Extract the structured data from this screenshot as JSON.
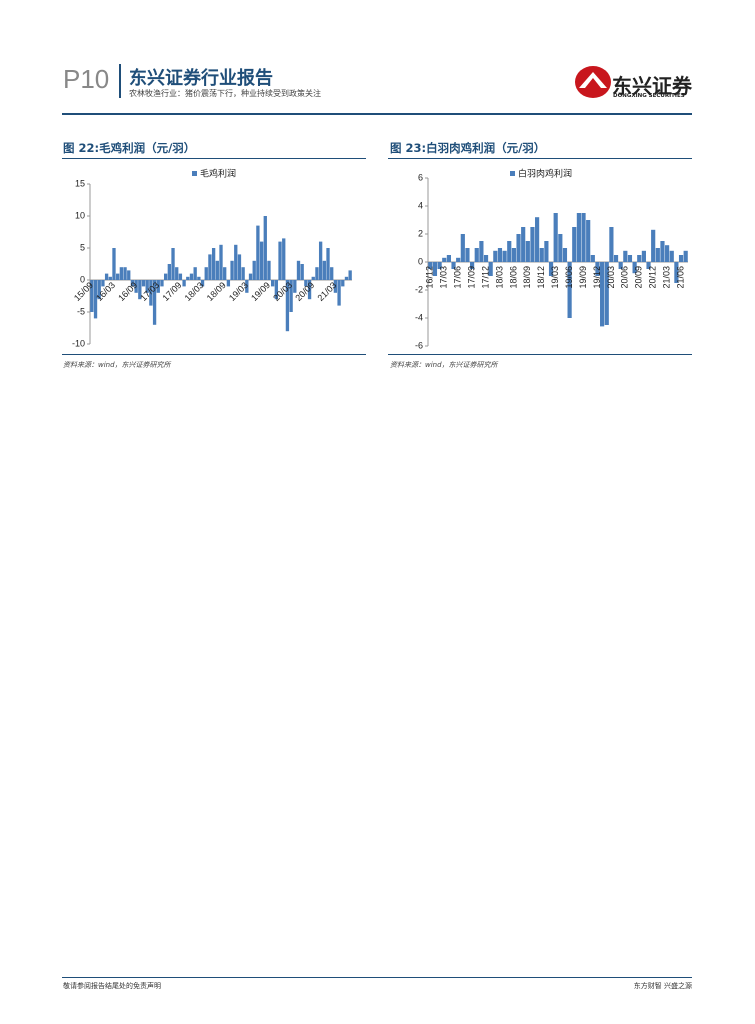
{
  "header": {
    "page": "P10",
    "title": "东兴证券行业报告",
    "subtitle": "农林牧渔行业：猪价震荡下行，种业持续受到政策关注",
    "logo": "东兴证券",
    "logo_en": "DONGXING SECURITIES"
  },
  "chart_data": [
    {
      "type": "bar",
      "title": "图 22:毛鸡利润（元/羽）",
      "source": "资料来源：wind，东兴证券研究所",
      "categories": [
        "15/09",
        null,
        null,
        null,
        null,
        null,
        "16/03",
        null,
        null,
        null,
        null,
        null,
        "16/09",
        null,
        null,
        null,
        null,
        null,
        "17/03",
        null,
        null,
        null,
        null,
        null,
        "17/09",
        null,
        null,
        null,
        null,
        null,
        "18/03",
        null,
        null,
        null,
        null,
        null,
        "18/09",
        null,
        null,
        null,
        null,
        null,
        "19/03",
        null,
        null,
        null,
        null,
        null,
        "19/09",
        null,
        null,
        null,
        null,
        null,
        "20/03",
        null,
        null,
        null,
        null,
        null,
        "20/09",
        null,
        null,
        null,
        null,
        null,
        "21/03",
        null,
        null,
        null,
        null
      ],
      "series": [
        {
          "name": "毛鸡利润",
          "color": "#4a7ebb",
          "values": [
            -5,
            -6,
            -3,
            -1,
            1,
            0.5,
            5,
            1,
            2,
            2,
            1.5,
            -1,
            -2,
            -3,
            -1,
            -2,
            -4,
            -7,
            -2,
            -1,
            1,
            2.5,
            5,
            2,
            1,
            -1,
            0.5,
            1,
            2,
            0.5,
            -1,
            2,
            4,
            5,
            3,
            5.5,
            2,
            -1,
            3,
            5.5,
            4,
            2,
            -2,
            1,
            3,
            8.5,
            6,
            10,
            3,
            -1,
            -3,
            6,
            6.5,
            -8,
            -5,
            -2,
            3,
            2.5,
            -1,
            -3,
            0.5,
            2,
            6,
            3,
            5,
            2,
            -2,
            -4,
            -1,
            0.5,
            1.5
          ]
        }
      ],
      "ylim": [
        -10,
        15
      ],
      "yticks": [
        -10,
        -5,
        0,
        5,
        10,
        15
      ],
      "label_rotation": -45
    },
    {
      "type": "bar",
      "title": "图 23:白羽肉鸡利润（元/羽）",
      "source": "资料来源：wind，东兴证券研究所",
      "categories": [
        "16/12",
        null,
        null,
        "17/03",
        null,
        null,
        "17/06",
        null,
        null,
        "17/09",
        null,
        null,
        "17/12",
        null,
        null,
        "18/03",
        null,
        null,
        "18/06",
        null,
        null,
        "18/09",
        null,
        null,
        "18/12",
        null,
        null,
        "19/03",
        null,
        null,
        "19/06",
        null,
        null,
        "19/09",
        null,
        null,
        "19/12",
        null,
        null,
        "20/03",
        null,
        null,
        "20/06",
        null,
        null,
        "20/09",
        null,
        null,
        "20/12",
        null,
        null,
        "21/03",
        null,
        null,
        "21/06",
        null
      ],
      "series": [
        {
          "name": "白羽肉鸡利润",
          "color": "#4a7ebb",
          "values": [
            -0.5,
            -1,
            -0.5,
            0.3,
            0.5,
            -0.5,
            0.3,
            2,
            1,
            -0.5,
            1,
            1.5,
            0.5,
            -1,
            0.8,
            1,
            0.8,
            1.5,
            1,
            2,
            2.5,
            1.5,
            2.5,
            3.2,
            1,
            1.5,
            -1,
            3.5,
            2,
            1,
            -4,
            2.5,
            3.5,
            3.5,
            3,
            0.5,
            -1,
            -4.6,
            -4.5,
            2.5,
            0.5,
            -0.5,
            0.8,
            0.5,
            -0.8,
            0.5,
            0.8,
            -0.5,
            2.3,
            1,
            1.5,
            1.2,
            0.8,
            -1.5,
            0.5,
            0.8
          ]
        }
      ],
      "ylim": [
        -6,
        6
      ],
      "yticks": [
        -6,
        -4,
        -2,
        0,
        2,
        4,
        6
      ],
      "label_rotation": -90
    }
  ],
  "footer": {
    "left": "敬请参阅报告结尾处的免责声明",
    "right": "东方财智 兴盛之源"
  }
}
